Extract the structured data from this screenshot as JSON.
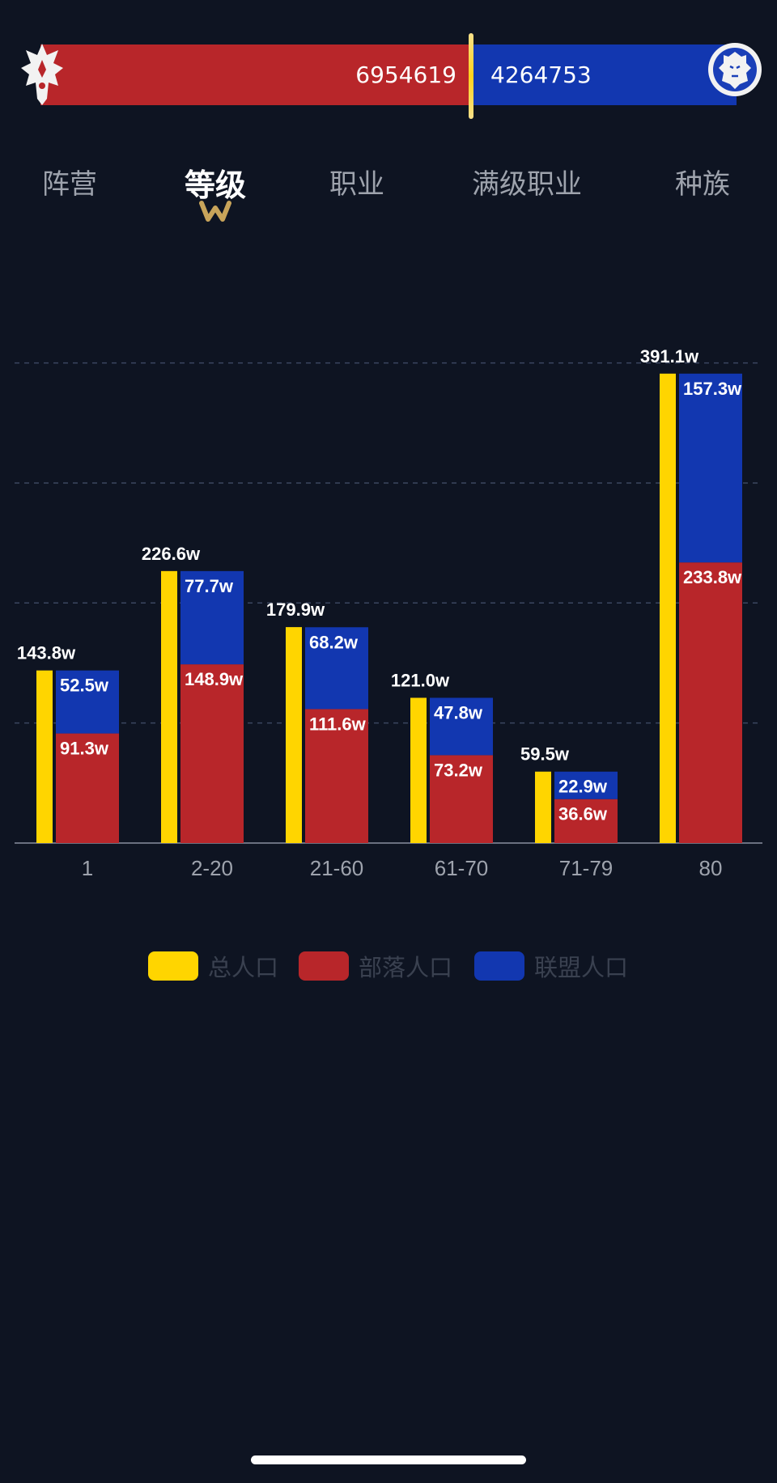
{
  "faction": {
    "horde_count": "6954619",
    "alliance_count": "4264753",
    "horde_color": "#b8262a",
    "alliance_color": "#1237b0",
    "horde_icon": "horde-emblem-icon",
    "alliance_icon": "alliance-lion-icon"
  },
  "tabs": [
    {
      "label": "阵营",
      "active": false
    },
    {
      "label": "等级",
      "active": true
    },
    {
      "label": "职业",
      "active": false
    },
    {
      "label": "满级职业",
      "active": false
    },
    {
      "label": "种族",
      "active": false
    }
  ],
  "chart_data": {
    "type": "bar",
    "categories": [
      "1",
      "2-20",
      "21-60",
      "61-70",
      "71-79",
      "80"
    ],
    "series": [
      {
        "name": "总人口",
        "values": [
          143.8,
          226.6,
          179.9,
          121.0,
          59.5,
          391.1
        ],
        "labels": [
          "143.8w",
          "226.6w",
          "179.9w",
          "121.0w",
          "59.5w",
          "391.1w"
        ],
        "color": "#ffd500"
      },
      {
        "name": "部落人口",
        "values": [
          91.3,
          148.9,
          111.6,
          73.2,
          36.6,
          233.8
        ],
        "labels": [
          "91.3w",
          "148.9w",
          "111.6w",
          "73.2w",
          "36.6w",
          "233.8w"
        ],
        "color": "#b8262a",
        "stack": "faction"
      },
      {
        "name": "联盟人口",
        "values": [
          52.5,
          77.7,
          68.2,
          47.8,
          22.9,
          157.3
        ],
        "labels": [
          "52.5w",
          "77.7w",
          "68.2w",
          "47.8w",
          "22.9w",
          "157.3w"
        ],
        "color": "#1237b0",
        "stack": "faction"
      }
    ],
    "ylim": [
      0,
      400
    ],
    "grid": true,
    "legend": "bottom-center"
  }
}
